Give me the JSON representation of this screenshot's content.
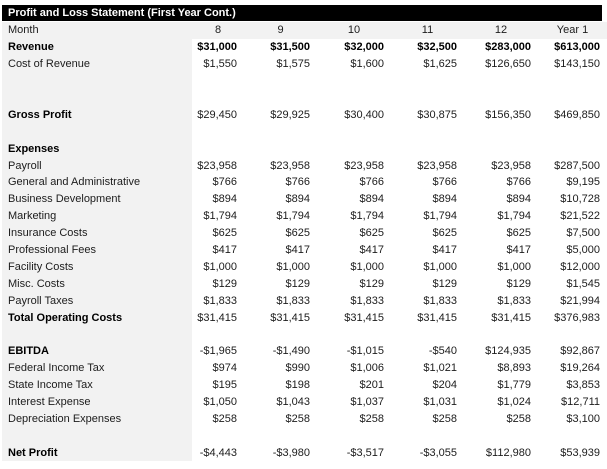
{
  "title": "Profit and Loss Statement (First Year Cont.)",
  "colors": {
    "title_bg": "#000000",
    "title_text": "#ffffff",
    "shaded_bg": "#f2f2f2",
    "body_bg": "#ffffff",
    "text": "#1c1c1c"
  },
  "table": {
    "header_label": "Month",
    "columns": [
      "8",
      "9",
      "10",
      "11",
      "12",
      "Year 1"
    ],
    "rows": [
      {
        "label": "Month",
        "style": "header",
        "values": [
          "8",
          "9",
          "10",
          "11",
          "12",
          "Year 1"
        ]
      },
      {
        "label": "Revenue",
        "style": "bold-all",
        "values": [
          "$31,000",
          "$31,500",
          "$32,000",
          "$32,500",
          "$283,000",
          "$613,000"
        ]
      },
      {
        "label": "Cost of Revenue",
        "style": "normal",
        "values": [
          "$1,550",
          "$1,575",
          "$1,600",
          "$1,625",
          "$126,650",
          "$143,150"
        ]
      },
      {
        "label": "",
        "style": "blank",
        "values": [
          "",
          "",
          "",
          "",
          "",
          ""
        ]
      },
      {
        "label": "",
        "style": "blank",
        "values": [
          "",
          "",
          "",
          "",
          "",
          ""
        ]
      },
      {
        "label": "Gross Profit",
        "style": "bold-label",
        "values": [
          "$29,450",
          "$29,925",
          "$30,400",
          "$30,875",
          "$156,350",
          "$469,850"
        ]
      },
      {
        "label": "",
        "style": "blank",
        "values": [
          "",
          "",
          "",
          "",
          "",
          ""
        ]
      },
      {
        "label": "Expenses",
        "style": "bold-label",
        "values": [
          "",
          "",
          "",
          "",
          "",
          ""
        ]
      },
      {
        "label": "Payroll",
        "style": "normal",
        "values": [
          "$23,958",
          "$23,958",
          "$23,958",
          "$23,958",
          "$23,958",
          "$287,500"
        ]
      },
      {
        "label": "General and Administrative",
        "style": "normal",
        "values": [
          "$766",
          "$766",
          "$766",
          "$766",
          "$766",
          "$9,195"
        ]
      },
      {
        "label": "Business Development",
        "style": "normal",
        "values": [
          "$894",
          "$894",
          "$894",
          "$894",
          "$894",
          "$10,728"
        ]
      },
      {
        "label": "Marketing",
        "style": "normal",
        "values": [
          "$1,794",
          "$1,794",
          "$1,794",
          "$1,794",
          "$1,794",
          "$21,522"
        ]
      },
      {
        "label": "Insurance Costs",
        "style": "normal",
        "values": [
          "$625",
          "$625",
          "$625",
          "$625",
          "$625",
          "$7,500"
        ]
      },
      {
        "label": "Professional Fees",
        "style": "normal",
        "values": [
          "$417",
          "$417",
          "$417",
          "$417",
          "$417",
          "$5,000"
        ]
      },
      {
        "label": "Facility Costs",
        "style": "normal",
        "values": [
          "$1,000",
          "$1,000",
          "$1,000",
          "$1,000",
          "$1,000",
          "$12,000"
        ]
      },
      {
        "label": "Misc. Costs",
        "style": "normal",
        "values": [
          "$129",
          "$129",
          "$129",
          "$129",
          "$129",
          "$1,545"
        ]
      },
      {
        "label": "Payroll Taxes",
        "style": "normal",
        "values": [
          "$1,833",
          "$1,833",
          "$1,833",
          "$1,833",
          "$1,833",
          "$21,994"
        ]
      },
      {
        "label": "Total Operating Costs",
        "style": "bold-label",
        "values": [
          "$31,415",
          "$31,415",
          "$31,415",
          "$31,415",
          "$31,415",
          "$376,983"
        ]
      },
      {
        "label": "",
        "style": "blank",
        "values": [
          "",
          "",
          "",
          "",
          "",
          ""
        ]
      },
      {
        "label": "EBITDA",
        "style": "bold-label",
        "values": [
          "-$1,965",
          "-$1,490",
          "-$1,015",
          "-$540",
          "$124,935",
          "$92,867"
        ]
      },
      {
        "label": "Federal Income Tax",
        "style": "normal",
        "values": [
          "$974",
          "$990",
          "$1,006",
          "$1,021",
          "$8,893",
          "$19,264"
        ]
      },
      {
        "label": "State Income Tax",
        "style": "normal",
        "values": [
          "$195",
          "$198",
          "$201",
          "$204",
          "$1,779",
          "$3,853"
        ]
      },
      {
        "label": "Interest Expense",
        "style": "normal",
        "values": [
          "$1,050",
          "$1,043",
          "$1,037",
          "$1,031",
          "$1,024",
          "$12,711"
        ]
      },
      {
        "label": "Depreciation Expenses",
        "style": "normal",
        "values": [
          "$258",
          "$258",
          "$258",
          "$258",
          "$258",
          "$3,100"
        ]
      },
      {
        "label": "",
        "style": "blank",
        "values": [
          "",
          "",
          "",
          "",
          "",
          ""
        ]
      },
      {
        "label": "Net Profit",
        "style": "bold-label",
        "values": [
          "-$4,443",
          "-$3,980",
          "-$3,517",
          "-$3,055",
          "$112,980",
          "$53,939"
        ]
      }
    ]
  }
}
